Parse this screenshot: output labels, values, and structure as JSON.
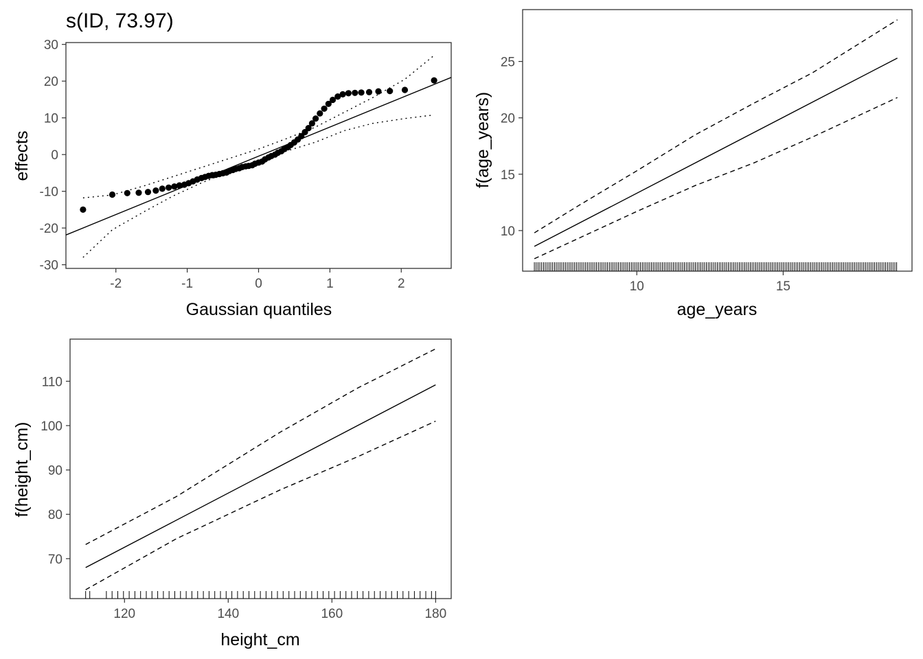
{
  "chart_data": [
    {
      "type": "scatter",
      "title": "s(ID, 73.97)",
      "xlabel": "Gaussian quantiles",
      "ylabel": "effects",
      "xlim": [
        -2.7,
        2.7
      ],
      "ylim": [
        -31,
        30.5
      ],
      "xticks": [
        -2,
        -1,
        0,
        1,
        2
      ],
      "xtick_labels": [
        "-2",
        "-1",
        "0",
        "1",
        "2"
      ],
      "yticks": [
        -30,
        -20,
        -10,
        0,
        10,
        20,
        30
      ],
      "ytick_labels": [
        "-30",
        "-20",
        "-10",
        "0",
        "10",
        "20",
        "30"
      ],
      "grid": false,
      "points": {
        "x": [
          -2.46,
          -2.05,
          -1.84,
          -1.68,
          -1.55,
          -1.44,
          -1.35,
          -1.26,
          -1.18,
          -1.11,
          -1.04,
          -0.98,
          -0.92,
          -0.86,
          -0.8,
          -0.75,
          -0.7,
          -0.65,
          -0.6,
          -0.55,
          -0.5,
          -0.45,
          -0.41,
          -0.36,
          -0.32,
          -0.27,
          -0.23,
          -0.18,
          -0.14,
          -0.09,
          -0.05,
          0.0,
          0.05,
          0.09,
          0.14,
          0.18,
          0.23,
          0.27,
          0.32,
          0.36,
          0.41,
          0.45,
          0.5,
          0.55,
          0.6,
          0.65,
          0.7,
          0.75,
          0.8,
          0.86,
          0.92,
          0.98,
          1.04,
          1.11,
          1.18,
          1.26,
          1.35,
          1.44,
          1.55,
          1.68,
          1.84,
          2.05,
          2.46
        ],
        "y": [
          -15.0,
          -10.9,
          -10.5,
          -10.4,
          -10.2,
          -9.8,
          -9.3,
          -9.0,
          -8.7,
          -8.4,
          -8.2,
          -7.8,
          -7.3,
          -6.8,
          -6.4,
          -6.1,
          -5.8,
          -5.6,
          -5.5,
          -5.3,
          -5.1,
          -4.9,
          -4.5,
          -4.2,
          -3.9,
          -3.7,
          -3.4,
          -3.2,
          -3.1,
          -2.9,
          -2.5,
          -2.2,
          -1.9,
          -1.3,
          -0.8,
          -0.4,
          0.0,
          0.5,
          0.9,
          1.5,
          2.0,
          2.6,
          3.3,
          4.1,
          5.0,
          6.1,
          7.2,
          8.5,
          9.8,
          11.2,
          12.5,
          13.8,
          14.9,
          15.8,
          16.4,
          16.7,
          16.8,
          16.9,
          17.0,
          17.2,
          17.3,
          17.6,
          20.2
        ]
      },
      "reference_line": {
        "x": [
          -2.7,
          2.7
        ],
        "y": [
          -21.9,
          21.0
        ]
      },
      "confidence_band": {
        "x": [
          -2.46,
          -2.05,
          -1.6,
          -1.2,
          -0.8,
          -0.4,
          0.0,
          0.4,
          0.8,
          1.2,
          1.6,
          2.05,
          2.46
        ],
        "upper": [
          -11.8,
          -11.0,
          -8.5,
          -6.0,
          -3.5,
          -1.0,
          1.5,
          4.4,
          7.5,
          11.5,
          15.5,
          20.5,
          27.0
        ],
        "lower": [
          -28.0,
          -20.5,
          -15.5,
          -11.3,
          -7.7,
          -4.6,
          -1.6,
          1.0,
          3.4,
          6.5,
          8.5,
          9.8,
          10.8
        ]
      }
    },
    {
      "type": "line",
      "xlabel": "age_years",
      "ylabel": "f(age_years)",
      "xlim": [
        6.1,
        19.4
      ],
      "ylim": [
        6.4,
        29.6
      ],
      "xticks": [
        10,
        15
      ],
      "xtick_labels": [
        "10",
        "15"
      ],
      "yticks": [
        10,
        15,
        20,
        25
      ],
      "ytick_labels": [
        "10",
        "15",
        "20",
        "25"
      ],
      "grid": false,
      "series": [
        {
          "style": "solid",
          "x": [
            6.5,
            18.9
          ],
          "y": [
            8.6,
            25.3
          ]
        },
        {
          "style": "dashed",
          "x": [
            6.5,
            8.0,
            10.0,
            12.0,
            14.0,
            16.0,
            18.9
          ],
          "y": [
            9.8,
            12.2,
            15.3,
            18.5,
            21.3,
            24.0,
            28.7
          ]
        },
        {
          "style": "dashed",
          "x": [
            6.5,
            8.0,
            10.0,
            12.0,
            14.0,
            16.0,
            18.9
          ],
          "y": [
            7.5,
            9.3,
            11.7,
            14.0,
            16.0,
            18.3,
            21.8
          ]
        }
      ],
      "rug": {
        "from": 6.5,
        "to": 18.9,
        "step": 0.0625
      }
    },
    {
      "type": "line",
      "xlabel": "height_cm",
      "ylabel": "f(height_cm)",
      "xlim": [
        109.5,
        183.0
      ],
      "ylim": [
        61.0,
        119.5
      ],
      "xticks": [
        120,
        140,
        160,
        180
      ],
      "xtick_labels": [
        "120",
        "140",
        "160",
        "180"
      ],
      "yticks": [
        70,
        80,
        90,
        100,
        110
      ],
      "ytick_labels": [
        "70",
        "80",
        "90",
        "100",
        "110"
      ],
      "grid": false,
      "series": [
        {
          "style": "solid",
          "x": [
            112.5,
            180.0
          ],
          "y": [
            68.0,
            109.2
          ]
        },
        {
          "style": "dashed",
          "x": [
            112.5,
            130.0,
            150.0,
            165.0,
            180.0
          ],
          "y": [
            73.2,
            84.0,
            98.5,
            108.5,
            117.3
          ]
        },
        {
          "style": "dashed",
          "x": [
            112.5,
            130.0,
            150.0,
            165.0,
            180.0
          ],
          "y": [
            63.0,
            74.5,
            85.5,
            93.0,
            101.0
          ]
        }
      ],
      "rug": {
        "values": [
          112.5,
          113.3,
          116.5,
          117.6,
          118.7,
          119.8,
          120.9,
          122.0,
          123.1,
          124.2,
          125.3,
          126.4,
          127.5,
          128.6,
          129.7,
          130.8,
          131.9,
          133.0,
          134.1,
          135.2,
          136.3,
          137.4,
          138.5,
          139.6,
          140.7,
          141.8,
          142.9,
          144.0,
          145.1,
          146.2,
          147.3,
          148.4,
          149.5,
          150.6,
          151.7,
          152.8,
          153.9,
          155.0,
          156.1,
          157.2,
          158.3,
          159.4,
          160.5,
          161.6,
          162.7,
          163.8,
          164.9,
          166.0,
          167.1,
          168.2,
          169.3,
          170.4,
          171.5,
          172.6,
          173.7,
          174.8,
          175.9,
          177.0,
          178.1,
          179.2,
          180.0
        ]
      }
    }
  ]
}
